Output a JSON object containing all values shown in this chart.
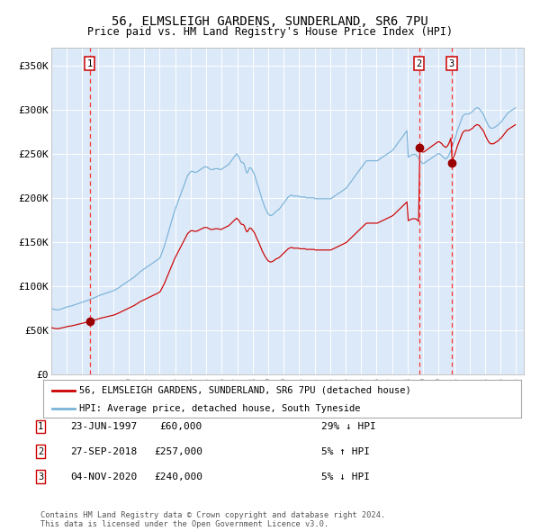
{
  "title": "56, ELMSLEIGH GARDENS, SUNDERLAND, SR6 7PU",
  "subtitle": "Price paid vs. HM Land Registry's House Price Index (HPI)",
  "fig_bg_color": "#ffffff",
  "plot_bg_color": "#dce9f8",
  "hpi_color": "#7ab3d9",
  "price_color": "#cc0000",
  "marker_color": "#990000",
  "vline_color": "#ff3333",
  "ylim": [
    0,
    370000
  ],
  "yticks": [
    0,
    50000,
    100000,
    150000,
    200000,
    250000,
    300000,
    350000
  ],
  "ytick_labels": [
    "£0",
    "£50K",
    "£100K",
    "£150K",
    "£200K",
    "£250K",
    "£300K",
    "£350K"
  ],
  "xmin": 1995.0,
  "xmax": 2025.5,
  "xticks": [
    1995,
    1996,
    1997,
    1998,
    1999,
    2000,
    2001,
    2002,
    2003,
    2004,
    2005,
    2006,
    2007,
    2008,
    2009,
    2010,
    2011,
    2012,
    2013,
    2014,
    2015,
    2016,
    2017,
    2018,
    2019,
    2020,
    2021,
    2022,
    2023,
    2024,
    2025
  ],
  "legend_line1": "56, ELMSLEIGH GARDENS, SUNDERLAND, SR6 7PU (detached house)",
  "legend_line2": "HPI: Average price, detached house, South Tyneside",
  "transactions": [
    {
      "num": 1,
      "date_decimal": 1997.48,
      "price": 60000
    },
    {
      "num": 2,
      "date_decimal": 2018.74,
      "price": 257000
    },
    {
      "num": 3,
      "date_decimal": 2020.84,
      "price": 240000
    }
  ],
  "table_rows": [
    {
      "num": 1,
      "date": "23-JUN-1997",
      "price": "£60,000",
      "hpi": "29% ↓ HPI"
    },
    {
      "num": 2,
      "date": "27-SEP-2018",
      "price": "£257,000",
      "hpi": "5% ↑ HPI"
    },
    {
      "num": 3,
      "date": "04-NOV-2020",
      "price": "£240,000",
      "hpi": "5% ↓ HPI"
    }
  ],
  "footer": "Contains HM Land Registry data © Crown copyright and database right 2024.\nThis data is licensed under the Open Government Licence v3.0.",
  "hpi_monthly": {
    "dates": [
      1995.042,
      1995.125,
      1995.208,
      1995.292,
      1995.375,
      1995.458,
      1995.542,
      1995.625,
      1995.708,
      1995.792,
      1995.875,
      1995.958,
      1996.042,
      1996.125,
      1996.208,
      1996.292,
      1996.375,
      1996.458,
      1996.542,
      1996.625,
      1996.708,
      1996.792,
      1996.875,
      1996.958,
      1997.042,
      1997.125,
      1997.208,
      1997.292,
      1997.375,
      1997.458,
      1997.542,
      1997.625,
      1997.708,
      1997.792,
      1997.875,
      1997.958,
      1998.042,
      1998.125,
      1998.208,
      1998.292,
      1998.375,
      1998.458,
      1998.542,
      1998.625,
      1998.708,
      1998.792,
      1998.875,
      1998.958,
      1999.042,
      1999.125,
      1999.208,
      1999.292,
      1999.375,
      1999.458,
      1999.542,
      1999.625,
      1999.708,
      1999.792,
      1999.875,
      1999.958,
      2000.042,
      2000.125,
      2000.208,
      2000.292,
      2000.375,
      2000.458,
      2000.542,
      2000.625,
      2000.708,
      2000.792,
      2000.875,
      2000.958,
      2001.042,
      2001.125,
      2001.208,
      2001.292,
      2001.375,
      2001.458,
      2001.542,
      2001.625,
      2001.708,
      2001.792,
      2001.875,
      2001.958,
      2002.042,
      2002.125,
      2002.208,
      2002.292,
      2002.375,
      2002.458,
      2002.542,
      2002.625,
      2002.708,
      2002.792,
      2002.875,
      2002.958,
      2003.042,
      2003.125,
      2003.208,
      2003.292,
      2003.375,
      2003.458,
      2003.542,
      2003.625,
      2003.708,
      2003.792,
      2003.875,
      2003.958,
      2004.042,
      2004.125,
      2004.208,
      2004.292,
      2004.375,
      2004.458,
      2004.542,
      2004.625,
      2004.708,
      2004.792,
      2004.875,
      2004.958,
      2005.042,
      2005.125,
      2005.208,
      2005.292,
      2005.375,
      2005.458,
      2005.542,
      2005.625,
      2005.708,
      2005.792,
      2005.875,
      2005.958,
      2006.042,
      2006.125,
      2006.208,
      2006.292,
      2006.375,
      2006.458,
      2006.542,
      2006.625,
      2006.708,
      2006.792,
      2006.875,
      2006.958,
      2007.042,
      2007.125,
      2007.208,
      2007.292,
      2007.375,
      2007.458,
      2007.542,
      2007.625,
      2007.708,
      2007.792,
      2007.875,
      2007.958,
      2008.042,
      2008.125,
      2008.208,
      2008.292,
      2008.375,
      2008.458,
      2008.542,
      2008.625,
      2008.708,
      2008.792,
      2008.875,
      2008.958,
      2009.042,
      2009.125,
      2009.208,
      2009.292,
      2009.375,
      2009.458,
      2009.542,
      2009.625,
      2009.708,
      2009.792,
      2009.875,
      2009.958,
      2010.042,
      2010.125,
      2010.208,
      2010.292,
      2010.375,
      2010.458,
      2010.542,
      2010.625,
      2010.708,
      2010.792,
      2010.875,
      2010.958,
      2011.042,
      2011.125,
      2011.208,
      2011.292,
      2011.375,
      2011.458,
      2011.542,
      2011.625,
      2011.708,
      2011.792,
      2011.875,
      2011.958,
      2012.042,
      2012.125,
      2012.208,
      2012.292,
      2012.375,
      2012.458,
      2012.542,
      2012.625,
      2012.708,
      2012.792,
      2012.875,
      2012.958,
      2013.042,
      2013.125,
      2013.208,
      2013.292,
      2013.375,
      2013.458,
      2013.542,
      2013.625,
      2013.708,
      2013.792,
      2013.875,
      2013.958,
      2014.042,
      2014.125,
      2014.208,
      2014.292,
      2014.375,
      2014.458,
      2014.542,
      2014.625,
      2014.708,
      2014.792,
      2014.875,
      2014.958,
      2015.042,
      2015.125,
      2015.208,
      2015.292,
      2015.375,
      2015.458,
      2015.542,
      2015.625,
      2015.708,
      2015.792,
      2015.875,
      2015.958,
      2016.042,
      2016.125,
      2016.208,
      2016.292,
      2016.375,
      2016.458,
      2016.542,
      2016.625,
      2016.708,
      2016.792,
      2016.875,
      2016.958,
      2017.042,
      2017.125,
      2017.208,
      2017.292,
      2017.375,
      2017.458,
      2017.542,
      2017.625,
      2017.708,
      2017.792,
      2017.875,
      2017.958,
      2018.042,
      2018.125,
      2018.208,
      2018.292,
      2018.375,
      2018.458,
      2018.542,
      2018.625,
      2018.708,
      2018.792,
      2018.875,
      2018.958,
      2019.042,
      2019.125,
      2019.208,
      2019.292,
      2019.375,
      2019.458,
      2019.542,
      2019.625,
      2019.708,
      2019.792,
      2019.875,
      2019.958,
      2020.042,
      2020.125,
      2020.208,
      2020.292,
      2020.375,
      2020.458,
      2020.542,
      2020.625,
      2020.708,
      2020.792,
      2020.875,
      2020.958,
      2021.042,
      2021.125,
      2021.208,
      2021.292,
      2021.375,
      2021.458,
      2021.542,
      2021.625,
      2021.708,
      2021.792,
      2021.875,
      2021.958,
      2022.042,
      2022.125,
      2022.208,
      2022.292,
      2022.375,
      2022.458,
      2022.542,
      2022.625,
      2022.708,
      2022.792,
      2022.875,
      2022.958,
      2023.042,
      2023.125,
      2023.208,
      2023.292,
      2023.375,
      2023.458,
      2023.542,
      2023.625,
      2023.708,
      2023.792,
      2023.875,
      2023.958,
      2024.042,
      2024.125,
      2024.208,
      2024.292,
      2024.375,
      2024.458,
      2024.542,
      2024.625,
      2024.708,
      2024.792,
      2024.875,
      2024.958
    ],
    "values": [
      74500,
      74000,
      73500,
      73200,
      73000,
      73200,
      73500,
      74000,
      74500,
      75000,
      75500,
      76000,
      76500,
      77000,
      77200,
      77500,
      78000,
      78500,
      79000,
      79500,
      80000,
      80500,
      81000,
      81500,
      82000,
      82500,
      83000,
      83500,
      84000,
      84500,
      85500,
      86000,
      86500,
      87000,
      87500,
      88000,
      89000,
      89500,
      90000,
      90500,
      91000,
      91500,
      92000,
      92500,
      93000,
      93500,
      94000,
      94500,
      95000,
      95800,
      96500,
      97500,
      98500,
      99500,
      100500,
      101500,
      102500,
      103500,
      104500,
      105500,
      106500,
      107500,
      108500,
      109500,
      110500,
      112000,
      113000,
      114500,
      116000,
      117000,
      118000,
      119000,
      120000,
      121000,
      122000,
      123000,
      124000,
      125000,
      126000,
      127000,
      128000,
      129000,
      130000,
      131000,
      133000,
      137000,
      141000,
      145000,
      150000,
      155000,
      160000,
      165000,
      170000,
      175000,
      180000,
      185000,
      189000,
      193000,
      197000,
      201000,
      205000,
      209000,
      213000,
      217000,
      221000,
      225000,
      227000,
      229000,
      230000,
      230000,
      229000,
      229000,
      229000,
      230000,
      231000,
      232000,
      233000,
      234000,
      235000,
      235000,
      235000,
      234000,
      233000,
      232000,
      232000,
      232000,
      233000,
      233000,
      233000,
      233000,
      232000,
      232000,
      233000,
      234000,
      235000,
      236000,
      237000,
      238000,
      240000,
      242000,
      244000,
      246000,
      248000,
      250000,
      248000,
      246000,
      242000,
      240000,
      240000,
      238000,
      232000,
      228000,
      230000,
      234000,
      234000,
      232000,
      229000,
      226000,
      221000,
      216000,
      212000,
      207000,
      202000,
      197000,
      193000,
      189000,
      186000,
      183000,
      181000,
      180000,
      180000,
      181000,
      182000,
      184000,
      185000,
      186000,
      187000,
      189000,
      191000,
      193000,
      195000,
      197000,
      199000,
      201000,
      202000,
      203000,
      203000,
      202000,
      202000,
      202000,
      202000,
      202000,
      201000,
      201000,
      201000,
      201000,
      201000,
      200000,
      200000,
      200000,
      200000,
      200000,
      200000,
      200000,
      199000,
      199000,
      199000,
      199000,
      199000,
      199000,
      199000,
      199000,
      199000,
      199000,
      199000,
      199000,
      199000,
      200000,
      201000,
      202000,
      203000,
      204000,
      205000,
      206000,
      207000,
      208000,
      209000,
      210000,
      211000,
      213000,
      215000,
      217000,
      219000,
      221000,
      223000,
      225000,
      227000,
      229000,
      231000,
      233000,
      235000,
      237000,
      239000,
      241000,
      242000,
      242000,
      242000,
      242000,
      242000,
      242000,
      242000,
      242000,
      242000,
      243000,
      244000,
      245000,
      246000,
      247000,
      248000,
      249000,
      250000,
      251000,
      252000,
      253000,
      254000,
      256000,
      258000,
      260000,
      262000,
      264000,
      266000,
      268000,
      270000,
      272000,
      274000,
      276000,
      246000,
      247000,
      248000,
      249000,
      249000,
      249000,
      249000,
      247000,
      245000,
      242000,
      241000,
      239000,
      239000,
      240000,
      241000,
      242000,
      243000,
      244000,
      245000,
      246000,
      247000,
      248000,
      249000,
      250000,
      250000,
      249000,
      248000,
      246000,
      245000,
      244000,
      245000,
      247000,
      250000,
      254000,
      258000,
      262000,
      266000,
      271000,
      276000,
      280000,
      284000,
      288000,
      292000,
      294000,
      295000,
      295000,
      295000,
      295000,
      296000,
      297000,
      298000,
      300000,
      301000,
      302000,
      302000,
      301000,
      299000,
      297000,
      295000,
      292000,
      288000,
      285000,
      282000,
      280000,
      279000,
      279000,
      279000,
      280000,
      281000,
      282000,
      283000,
      285000,
      286000,
      288000,
      290000,
      292000,
      294000,
      296000,
      297000,
      298000,
      299000,
      300000,
      301000,
      302000
    ]
  }
}
